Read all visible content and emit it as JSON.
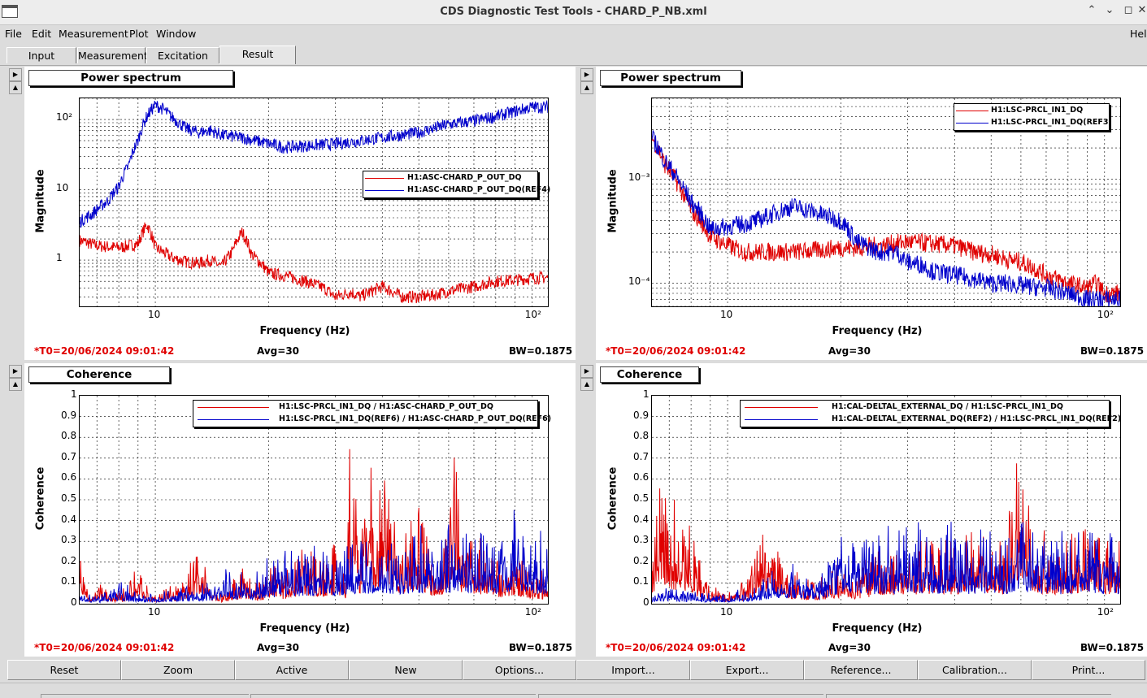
{
  "window": {
    "title": "CDS Diagnostic Test Tools - CHARD_P_NB.xml"
  },
  "menu": [
    "File",
    "Edit",
    "Measurement",
    "Plot",
    "Window"
  ],
  "menu_help": "Hel",
  "tabs": [
    "Input",
    "Measurement",
    "Excitation",
    "Result"
  ],
  "active_tab": "Result",
  "side_buttons": {
    "right": "▶",
    "up": "▲"
  },
  "plots": [
    {
      "title": "Power spectrum",
      "ylabel": "Magnitude",
      "xlabel": "Frequency (Hz)",
      "xticks": [
        "10",
        "10²"
      ],
      "yticks": [
        "10²",
        "10",
        "1"
      ],
      "legend": [
        "H1:ASC-CHARD_P_OUT_DQ",
        "H1:ASC-CHARD_P_OUT_DQ(REF4)"
      ],
      "t0": "*T0=20/06/2024 09:01:42",
      "avg": "Avg=30",
      "bw": "BW=0.1875"
    },
    {
      "title": "Power spectrum",
      "ylabel": "Magnitude",
      "xlabel": "Frequency (Hz)",
      "xticks": [
        "10",
        "10²"
      ],
      "yticks": [
        "10⁻³",
        "10⁻⁴"
      ],
      "legend": [
        "H1:LSC-PRCL_IN1_DQ",
        "H1:LSC-PRCL_IN1_DQ(REF3)"
      ],
      "t0": "*T0=20/06/2024 09:01:42",
      "avg": "Avg=30",
      "bw": "BW=0.1875"
    },
    {
      "title": "Coherence",
      "ylabel": "Coherence",
      "xlabel": "Frequency (Hz)",
      "xticks": [
        "10",
        "10²"
      ],
      "yticks": [
        "1",
        "0.9",
        "0.8",
        "0.7",
        "0.6",
        "0.5",
        "0.4",
        "0.3",
        "0.2",
        "0.1",
        "0"
      ],
      "legend": [
        "H1:LSC-PRCL_IN1_DQ / H1:ASC-CHARD_P_OUT_DQ",
        "H1:LSC-PRCL_IN1_DQ(REF6) / H1:ASC-CHARD_P_OUT_DQ(REF6)"
      ],
      "t0": "*T0=20/06/2024 09:01:42",
      "avg": "Avg=30",
      "bw": "BW=0.1875"
    },
    {
      "title": "Coherence",
      "ylabel": "Coherence",
      "xlabel": "Frequency (Hz)",
      "xticks": [
        "10",
        "10²"
      ],
      "yticks": [
        "1",
        "0.9",
        "0.8",
        "0.7",
        "0.6",
        "0.5",
        "0.4",
        "0.3",
        "0.2",
        "0.1",
        "0"
      ],
      "legend": [
        "H1:CAL-DELTAL_EXTERNAL_DQ / H1:LSC-PRCL_IN1_DQ",
        "H1:CAL-DELTAL_EXTERNAL_DQ(REF2) / H1:LSC-PRCL_IN1_DQ(REF2)"
      ],
      "t0": "*T0=20/06/2024 09:01:42",
      "avg": "Avg=30",
      "bw": "BW=0.1875"
    }
  ],
  "chart_data": [
    {
      "type": "line",
      "title": "Power spectrum",
      "xlabel": "Frequency (Hz)",
      "ylabel": "Magnitude",
      "xscale": "log",
      "yscale": "log",
      "xlim": [
        6.3,
        110
      ],
      "ylim": [
        0.22,
        200
      ],
      "grid": true,
      "legend": "top-right",
      "series": [
        {
          "name": "H1:ASC-CHARD_P_OUT_DQ",
          "color": "#e00000",
          "x": [
            6.3,
            7,
            8,
            9,
            9.5,
            10,
            11,
            12,
            13,
            14,
            15,
            16,
            17,
            18,
            20,
            22,
            25,
            28,
            30,
            33,
            35,
            40,
            45,
            50,
            55,
            60,
            70,
            80,
            90,
            100
          ],
          "y": [
            1.9,
            1.6,
            1.5,
            1.7,
            3.2,
            1.5,
            1.1,
            0.95,
            0.9,
            1.0,
            0.8,
            1.3,
            2.5,
            1.2,
            0.65,
            0.6,
            0.5,
            0.4,
            0.3,
            0.35,
            0.3,
            0.42,
            0.3,
            0.3,
            0.32,
            0.36,
            0.42,
            0.5,
            0.52,
            0.56
          ]
        },
        {
          "name": "H1:ASC-CHARD_P_OUT_DQ(REF4)",
          "color": "#0000cc",
          "x": [
            6.3,
            6.8,
            7.5,
            8,
            8.5,
            9,
            9.5,
            10,
            10.5,
            11,
            12,
            13,
            14,
            15,
            17,
            20,
            22,
            25,
            30,
            35,
            40,
            45,
            50,
            55,
            60,
            70,
            80,
            90,
            100
          ],
          "y": [
            3.5,
            4.5,
            7,
            11,
            22,
            50,
            110,
            160,
            140,
            110,
            75,
            65,
            70,
            60,
            55,
            45,
            40,
            42,
            45,
            50,
            55,
            60,
            65,
            75,
            85,
            95,
            110,
            130,
            150
          ]
        }
      ]
    },
    {
      "type": "line",
      "title": "Power spectrum",
      "xlabel": "Frequency (Hz)",
      "ylabel": "Magnitude",
      "xscale": "log",
      "yscale": "log",
      "xlim": [
        6.3,
        110
      ],
      "ylim": [
        6e-05,
        0.006
      ],
      "grid": true,
      "legend": "top-right",
      "series": [
        {
          "name": "H1:LSC-PRCL_IN1_DQ",
          "color": "#e00000",
          "x": [
            6.3,
            6.8,
            7.5,
            8,
            9,
            10,
            11,
            12,
            15,
            18,
            20,
            22,
            25,
            30,
            35,
            40,
            45,
            50,
            55,
            60,
            65,
            70,
            80,
            90,
            95,
            100
          ],
          "y": [
            0.0025,
            0.0014,
            0.0008,
            0.0005,
            0.00028,
            0.00023,
            0.0002,
            0.0002,
            0.0002,
            0.00021,
            0.00022,
            0.00022,
            0.00023,
            0.00025,
            0.00024,
            0.00023,
            0.0002,
            0.00019,
            0.00017,
            0.00016,
            0.00014,
            0.00012,
            0.0001,
            9e-05,
            0.0001,
            8e-05
          ]
        },
        {
          "name": "H1:LSC-PRCL_IN1_DQ(REF3)",
          "color": "#0000cc",
          "x": [
            6.3,
            6.8,
            7.5,
            8,
            9,
            10,
            11,
            12,
            15,
            18,
            20,
            22,
            25,
            28,
            30,
            33,
            35,
            40,
            45,
            50,
            55,
            60,
            70,
            80,
            90,
            100
          ],
          "y": [
            0.0025,
            0.0015,
            0.0009,
            0.0006,
            0.00033,
            0.00035,
            0.00037,
            0.0004,
            0.00055,
            0.00045,
            0.0004,
            0.00025,
            0.0002,
            0.0002,
            0.00016,
            0.00015,
            0.00013,
            0.00012,
            0.00011,
            0.0001,
            0.0001,
            9.5e-05,
            9e-05,
            8e-05,
            7e-05,
            7e-05
          ]
        }
      ]
    },
    {
      "type": "line",
      "title": "Coherence",
      "xlabel": "Frequency (Hz)",
      "ylabel": "Coherence",
      "xscale": "log",
      "xlim": [
        6.3,
        110
      ],
      "ylim": [
        0,
        1
      ],
      "grid": true,
      "legend": "top-right",
      "series": [
        {
          "name": "H1:LSC-PRCL_IN1_DQ / H1:ASC-CHARD_P_OUT_DQ",
          "color": "#e00000",
          "x": [
            6.3,
            6.6,
            7,
            8,
            9,
            10,
            11,
            12,
            13,
            14,
            15,
            17,
            19,
            20,
            22,
            25,
            28,
            30,
            32,
            33,
            35,
            37,
            38,
            40,
            45,
            50,
            55,
            60,
            62,
            65,
            70,
            80,
            90,
            100
          ],
          "y": [
            0.35,
            0.05,
            0.1,
            0.05,
            0.15,
            0.05,
            0.08,
            0.1,
            0.3,
            0.1,
            0.05,
            0.15,
            0.1,
            0.2,
            0.15,
            0.25,
            0.2,
            0.3,
            0.15,
            0.8,
            0.2,
            0.85,
            0.25,
            0.65,
            0.3,
            0.45,
            0.2,
            0.35,
            0.85,
            0.3,
            0.3,
            0.2,
            0.25,
            0.15
          ]
        },
        {
          "name": "H1:LSC-PRCL_IN1_DQ(REF6) / H1:ASC-CHARD_P_OUT_DQ(REF6)",
          "color": "#0000cc",
          "x": [
            6.3,
            7,
            8,
            9,
            10,
            12,
            14,
            16,
            18,
            20,
            25,
            30,
            35,
            40,
            45,
            50,
            55,
            60,
            70,
            80,
            90,
            100
          ],
          "y": [
            0.08,
            0.03,
            0.1,
            0.05,
            0.05,
            0.08,
            0.1,
            0.15,
            0.12,
            0.2,
            0.25,
            0.25,
            0.3,
            0.35,
            0.25,
            0.35,
            0.3,
            0.35,
            0.35,
            0.3,
            0.4,
            0.3
          ]
        }
      ]
    },
    {
      "type": "line",
      "title": "Coherence",
      "xlabel": "Frequency (Hz)",
      "ylabel": "Coherence",
      "xscale": "log",
      "xlim": [
        6.3,
        110
      ],
      "ylim": [
        0,
        1
      ],
      "grid": true,
      "legend": "top-right",
      "series": [
        {
          "name": "H1:CAL-DELTAL_EXTERNAL_DQ / H1:LSC-PRCL_IN1_DQ",
          "color": "#e00000",
          "x": [
            6.3,
            6.6,
            7,
            7.5,
            8,
            8.5,
            9,
            10,
            11,
            12,
            13,
            14,
            15,
            17,
            20,
            22,
            25,
            30,
            35,
            40,
            45,
            50,
            55,
            60,
            65,
            70,
            80,
            90,
            100
          ],
          "y": [
            0.3,
            0.65,
            0.5,
            0.35,
            0.38,
            0.15,
            0.08,
            0.05,
            0.1,
            0.25,
            0.4,
            0.2,
            0.15,
            0.1,
            0.2,
            0.15,
            0.25,
            0.3,
            0.3,
            0.3,
            0.35,
            0.3,
            0.3,
            0.85,
            0.35,
            0.3,
            0.3,
            0.35,
            0.3
          ]
        },
        {
          "name": "H1:CAL-DELTAL_EXTERNAL_DQ(REF2) / H1:LSC-PRCL_IN1_DQ(REF2)",
          "color": "#0000cc",
          "x": [
            6.3,
            7,
            8,
            9,
            10,
            12,
            14,
            16,
            18,
            20,
            25,
            30,
            35,
            40,
            45,
            50,
            55,
            60,
            70,
            80,
            90,
            100
          ],
          "y": [
            0.05,
            0.08,
            0.05,
            0.05,
            0.05,
            0.1,
            0.2,
            0.15,
            0.15,
            0.35,
            0.3,
            0.35,
            0.3,
            0.35,
            0.3,
            0.35,
            0.3,
            0.4,
            0.3,
            0.3,
            0.35,
            0.3
          ]
        }
      ]
    }
  ],
  "bottom_buttons": [
    "Reset",
    "Zoom",
    "Active",
    "New",
    "Options...",
    "Import...",
    "Export...",
    "Reference...",
    "Calibration...",
    "Print..."
  ]
}
